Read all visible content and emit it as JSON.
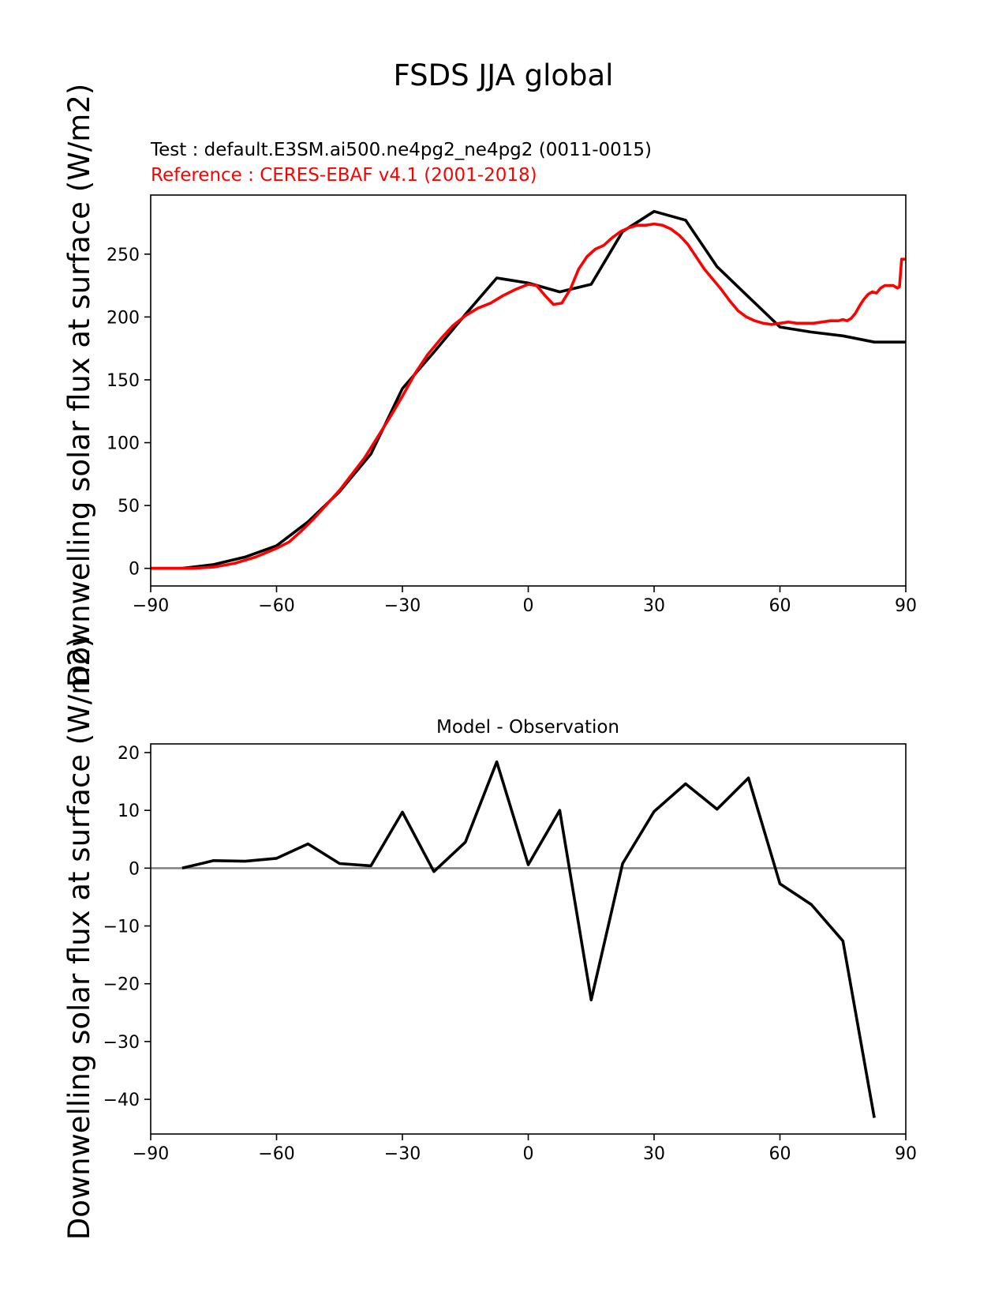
{
  "figure": {
    "title": "FSDS JJA global"
  },
  "chart_data": [
    {
      "type": "line",
      "test_label": "Test : default.E3SM.ai500.ne4pg2_ne4pg2 (0011-0015)",
      "reference_label": "Reference : CERES-EBAF v4.1 (2001-2018)",
      "ylabel": "Downwelling solar flux at surface (W/m2)",
      "xlim": [
        -90,
        90
      ],
      "ylim": [
        -14,
        297
      ],
      "xticks": [
        -90,
        -60,
        -30,
        0,
        30,
        60,
        90
      ],
      "yticks": [
        0,
        50,
        100,
        150,
        200,
        250
      ],
      "series": [
        {
          "role": "test",
          "color": "#000000",
          "x": [
            -90,
            -82.5,
            -75,
            -67.5,
            -60,
            -52.5,
            -45,
            -37.5,
            -30,
            -22.5,
            -15,
            -7.5,
            0,
            7.5,
            15,
            22.5,
            30,
            37.5,
            45,
            52.5,
            60,
            67.5,
            75,
            82.5,
            90
          ],
          "y": [
            0,
            0,
            3,
            9,
            18,
            37,
            61,
            91,
            143,
            172,
            202,
            231,
            227,
            220,
            226,
            268,
            284,
            277,
            240,
            216,
            192,
            188,
            185,
            180,
            180
          ]
        },
        {
          "role": "reference",
          "color": "#ff0000",
          "x": [
            -90,
            -85,
            -80,
            -75,
            -70,
            -65,
            -60,
            -57,
            -54,
            -51,
            -48,
            -45,
            -42,
            -39,
            -36,
            -33,
            -30,
            -27,
            -24,
            -21,
            -18,
            -15,
            -12,
            -9,
            -6,
            -3,
            0,
            2,
            4,
            6,
            8,
            10,
            12,
            14,
            16,
            18,
            20,
            22,
            24,
            26,
            28,
            30,
            32,
            34,
            36,
            38,
            40,
            42,
            44,
            46,
            48,
            50,
            52,
            54,
            56,
            58,
            60,
            62,
            64,
            66,
            68,
            70,
            72,
            74,
            75,
            76,
            77,
            78,
            79,
            80,
            81,
            82,
            83,
            84,
            85,
            86,
            87,
            88,
            88.5,
            89,
            90
          ],
          "y": [
            0,
            0,
            0,
            1,
            4,
            9,
            16,
            21,
            30,
            40,
            51,
            62,
            75,
            88,
            104,
            120,
            137,
            155,
            170,
            182,
            193,
            201,
            207,
            211,
            217,
            222,
            226,
            225,
            217,
            210,
            211,
            222,
            238,
            248,
            254,
            257,
            263,
            268,
            271,
            273,
            273,
            274,
            273,
            270,
            265,
            258,
            248,
            238,
            230,
            222,
            213,
            205,
            200,
            197,
            195,
            194,
            195,
            196,
            195,
            195,
            195,
            196,
            197,
            197,
            198,
            197,
            199,
            203,
            209,
            214,
            218,
            220,
            219,
            223,
            225,
            225,
            225,
            223,
            224,
            246,
            246
          ]
        }
      ]
    },
    {
      "type": "line",
      "title": "Model - Observation",
      "ylabel": "Downwelling solar flux at surface (W/m2)",
      "xlim": [
        -90,
        90
      ],
      "ylim": [
        -46,
        21.5
      ],
      "xticks": [
        -90,
        -60,
        -30,
        0,
        30,
        60,
        90
      ],
      "yticks": [
        -40,
        -30,
        -20,
        -10,
        0,
        10,
        20
      ],
      "zero_line_color": "#808080",
      "series": [
        {
          "role": "difference",
          "color": "#000000",
          "x": [
            -82.5,
            -75,
            -67.5,
            -60,
            -52.5,
            -45,
            -37.5,
            -30,
            -22.5,
            -15,
            -7.5,
            0,
            7.5,
            15,
            22.5,
            30,
            37.5,
            45,
            52.5,
            60,
            67.5,
            75,
            82.5
          ],
          "y": [
            0,
            1.3,
            1.2,
            1.7,
            4.2,
            0.8,
            0.4,
            9.7,
            -0.6,
            4.5,
            18.4,
            0.6,
            10,
            -22.8,
            0.8,
            9.8,
            14.6,
            10.2,
            15.6,
            -2.7,
            -6.3,
            -12.6,
            -43.2
          ]
        }
      ]
    }
  ]
}
